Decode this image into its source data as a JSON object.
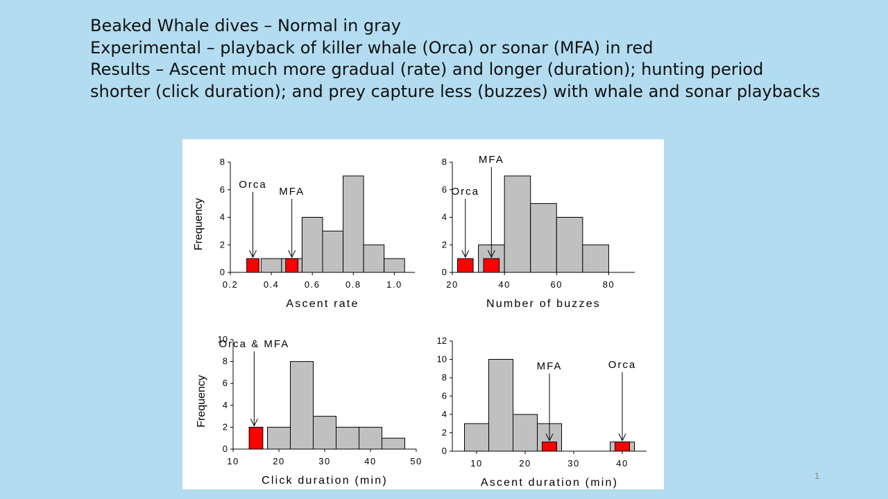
{
  "slide": {
    "lines": [
      "Beaked Whale dives – Normal in gray",
      "Experimental – playback of killer whale (Orca) or sonar (MFA) in red",
      "Results – Ascent much more gradual (rate) and longer (duration); hunting period",
      "shorter (click duration); and prey capture less (buzzes) with whale and sonar playbacks"
    ],
    "page_number": "1"
  },
  "colors": {
    "normal": "#c0c0c0",
    "experimental": "#ff0000",
    "background": "#b3dcf0",
    "panel": "#ffffff"
  },
  "chart_data": [
    {
      "type": "bar",
      "xlabel": "Ascent rate",
      "ylabel": "Frequency",
      "xlim": [
        0.2,
        1.1
      ],
      "ylim": [
        0,
        8
      ],
      "xticks": [
        "0.2",
        "0.4",
        "0.6",
        "0.8",
        "1.0"
      ],
      "yticks": [
        "0",
        "2",
        "4",
        "6",
        "8"
      ],
      "series": [
        {
          "name": "Normal",
          "bins": [
            [
              0.35,
              0.45,
              1
            ],
            [
              0.45,
              0.55,
              1
            ],
            [
              0.55,
              0.65,
              4
            ],
            [
              0.65,
              0.75,
              3
            ],
            [
              0.75,
              0.85,
              7
            ],
            [
              0.85,
              0.95,
              2
            ],
            [
              0.95,
              1.05,
              1
            ]
          ]
        },
        {
          "name": "Experimental",
          "bins": [
            [
              0.28,
              0.34,
              1
            ],
            [
              0.47,
              0.53,
              1
            ]
          ]
        }
      ],
      "annotations": [
        {
          "text": "Orca",
          "x": 0.31
        },
        {
          "text": "MFA",
          "x": 0.5
        }
      ]
    },
    {
      "type": "bar",
      "xlabel": "Number of buzzes",
      "ylabel": "",
      "xlim": [
        20,
        90
      ],
      "ylim": [
        0,
        8
      ],
      "xticks": [
        "20",
        "40",
        "60",
        "80"
      ],
      "yticks": [
        "0",
        "2",
        "4",
        "6",
        "8"
      ],
      "series": [
        {
          "name": "Normal",
          "bins": [
            [
              30,
              40,
              2
            ],
            [
              40,
              50,
              7
            ],
            [
              50,
              60,
              5
            ],
            [
              60,
              70,
              4
            ],
            [
              70,
              80,
              2
            ]
          ]
        },
        {
          "name": "Experimental",
          "bins": [
            [
              22,
              28,
              1
            ],
            [
              32,
              38,
              1
            ]
          ]
        }
      ],
      "annotations": [
        {
          "text": "Orca",
          "x": 25
        },
        {
          "text": "MFA",
          "x": 35
        }
      ]
    },
    {
      "type": "bar",
      "xlabel": "Click duration (min)",
      "ylabel": "Frequency",
      "xlim": [
        10,
        50
      ],
      "ylim": [
        0,
        10
      ],
      "xticks": [
        "10",
        "20",
        "30",
        "40",
        "50"
      ],
      "yticks": [
        "0",
        "2",
        "4",
        "6",
        "8",
        "10"
      ],
      "series": [
        {
          "name": "Normal",
          "bins": [
            [
              17.5,
              22.5,
              2
            ],
            [
              22.5,
              27.5,
              8
            ],
            [
              27.5,
              32.5,
              3
            ],
            [
              32.5,
              37.5,
              2
            ],
            [
              37.5,
              42.5,
              2
            ],
            [
              42.5,
              47.5,
              1
            ]
          ]
        },
        {
          "name": "Experimental",
          "bins": [
            [
              13.5,
              16.5,
              2
            ]
          ]
        }
      ],
      "annotations": [
        {
          "text": "Orca & MFA",
          "x": 14.6
        }
      ]
    },
    {
      "type": "bar",
      "xlabel": "Ascent duration (min)",
      "ylabel": "",
      "xlim": [
        5,
        45
      ],
      "ylim": [
        0,
        12
      ],
      "xticks": [
        "10",
        "20",
        "30",
        "40"
      ],
      "yticks": [
        "0",
        "2",
        "4",
        "6",
        "8",
        "10",
        "12"
      ],
      "series": [
        {
          "name": "Normal",
          "bins": [
            [
              7.5,
              12.5,
              3
            ],
            [
              12.5,
              17.5,
              10
            ],
            [
              17.5,
              22.5,
              4
            ],
            [
              22.5,
              27.5,
              3
            ],
            [
              37.5,
              42.5,
              1
            ]
          ]
        },
        {
          "name": "Experimental",
          "bins": [
            [
              23.5,
              26.5,
              1
            ],
            [
              38.5,
              41.5,
              1
            ]
          ]
        }
      ],
      "annotations": [
        {
          "text": "MFA",
          "x": 25
        },
        {
          "text": "Orca",
          "x": 40
        }
      ]
    }
  ]
}
